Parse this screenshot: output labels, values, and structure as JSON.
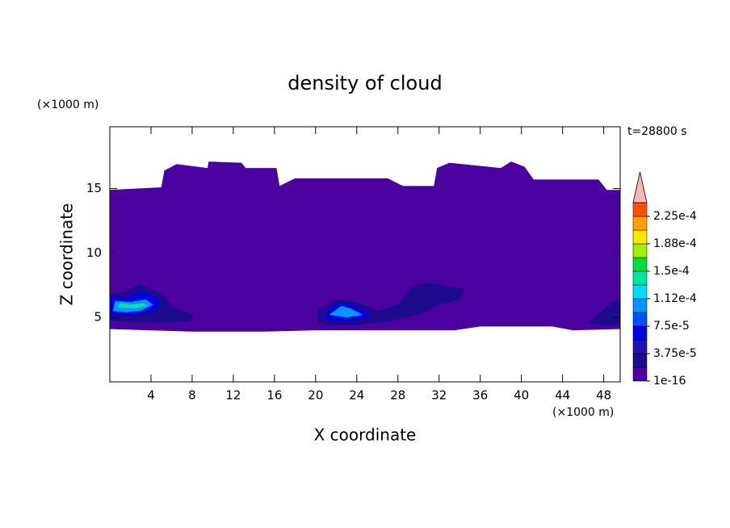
{
  "chart_data": {
    "type": "contour",
    "title": "density of cloud",
    "xlabel": "X coordinate",
    "ylabel": "Z coordinate",
    "x_unit": "(×1000 m)",
    "y_unit": "(×1000 m)",
    "annotation": "t=28800 s",
    "xlim": [
      0,
      49.6
    ],
    "ylim": [
      0,
      19.8
    ],
    "xticks": [
      4,
      8,
      12,
      16,
      20,
      24,
      28,
      32,
      36,
      40,
      44,
      48
    ],
    "yticks": [
      5,
      10,
      15
    ],
    "colorbar": {
      "levels": [
        1e-16,
        1.875e-05,
        3.75e-05,
        5.625e-05,
        7.5e-05,
        9.375e-05,
        0.0001125,
        0.00013125,
        0.00015,
        0.00016875,
        0.0001875,
        0.00020625,
        0.000225,
        0.00024375
      ],
      "colors": [
        "#4b00a0",
        "#1e0a8c",
        "#1e14b4",
        "#0000e6",
        "#0050ff",
        "#0096ff",
        "#00dcff",
        "#00e6a0",
        "#00dc3c",
        "#a0f000",
        "#ffe600",
        "#ffa000",
        "#ff5000"
      ],
      "extend_color": "#ffb4b4",
      "ticks": [
        {
          "value": 1e-16,
          "label": "1e-16"
        },
        {
          "value": 3.75e-05,
          "label": "3.75e-5"
        },
        {
          "value": 7.5e-05,
          "label": "7.5e-5"
        },
        {
          "value": 0.0001125,
          "label": "1.12e-4"
        },
        {
          "value": 0.00015,
          "label": "1.5e-4"
        },
        {
          "value": 0.0001875,
          "label": "1.88e-4"
        },
        {
          "value": 0.000225,
          "label": "2.25e-4"
        }
      ]
    },
    "contours": [
      {
        "level": 1e-16,
        "polygon": [
          [
            0,
            14.9
          ],
          [
            5,
            15.1
          ],
          [
            5.3,
            16.4
          ],
          [
            6.5,
            16.9
          ],
          [
            9.5,
            16.6
          ],
          [
            9.6,
            17.1
          ],
          [
            12.8,
            17.0
          ],
          [
            13.2,
            16.6
          ],
          [
            16.2,
            16.6
          ],
          [
            16.5,
            15.2
          ],
          [
            18,
            15.8
          ],
          [
            27,
            15.8
          ],
          [
            28.5,
            15.2
          ],
          [
            31.5,
            15.2
          ],
          [
            31.8,
            16.6
          ],
          [
            33,
            17.0
          ],
          [
            38,
            16.6
          ],
          [
            39,
            17.1
          ],
          [
            40.3,
            16.7
          ],
          [
            41.2,
            15.7
          ],
          [
            47.5,
            15.7
          ],
          [
            48.3,
            14.9
          ],
          [
            49.6,
            14.9
          ],
          [
            49.6,
            4.1
          ],
          [
            45,
            4.0
          ],
          [
            43,
            4.3
          ],
          [
            36,
            4.3
          ],
          [
            33.5,
            4.0
          ],
          [
            20,
            4.0
          ],
          [
            15,
            3.9
          ],
          [
            8,
            3.9
          ],
          [
            0,
            4.1
          ]
        ]
      },
      {
        "level": 1.875e-05,
        "polygon": [
          [
            0,
            4.8
          ],
          [
            0,
            6.8
          ],
          [
            1.5,
            7.0
          ],
          [
            3,
            7.6
          ],
          [
            4.5,
            7.0
          ],
          [
            5.5,
            6.5
          ],
          [
            6,
            5.8
          ],
          [
            8.2,
            5.2
          ],
          [
            7.8,
            4.7
          ],
          [
            5,
            4.6
          ],
          [
            2,
            4.6
          ]
        ]
      },
      {
        "level": 1.875e-05,
        "polygon": [
          [
            20.2,
            4.6
          ],
          [
            20.2,
            5.5
          ],
          [
            22,
            6.4
          ],
          [
            24,
            6.2
          ],
          [
            26,
            5.5
          ],
          [
            28,
            6.0
          ],
          [
            29.5,
            7.5
          ],
          [
            31,
            7.7
          ],
          [
            34.5,
            7.2
          ],
          [
            34,
            6.4
          ],
          [
            32,
            6.0
          ],
          [
            30,
            5.2
          ],
          [
            27,
            4.7
          ],
          [
            24,
            4.4
          ],
          [
            21,
            4.4
          ]
        ]
      },
      {
        "level": 1.875e-05,
        "polygon": [
          [
            46.5,
            4.6
          ],
          [
            47.5,
            5.3
          ],
          [
            49.6,
            6.6
          ],
          [
            49.6,
            4.4
          ],
          [
            48,
            4.4
          ]
        ]
      },
      {
        "level": 5.625e-05,
        "polygon": [
          [
            0,
            5.2
          ],
          [
            0,
            6.6
          ],
          [
            1.5,
            6.5
          ],
          [
            3,
            7.0
          ],
          [
            4.5,
            6.6
          ],
          [
            5,
            6.0
          ],
          [
            4,
            5.4
          ],
          [
            2,
            5.2
          ]
        ]
      },
      {
        "level": 5.625e-05,
        "polygon": [
          [
            20.8,
            4.9
          ],
          [
            21.5,
            5.8
          ],
          [
            22.6,
            6.2
          ],
          [
            24,
            5.8
          ],
          [
            25.5,
            5.2
          ],
          [
            24,
            4.8
          ],
          [
            22,
            4.7
          ]
        ]
      },
      {
        "level": 9.375e-05,
        "polygon": [
          [
            0.3,
            5.5
          ],
          [
            0.5,
            6.3
          ],
          [
            2,
            6.2
          ],
          [
            3.5,
            6.4
          ],
          [
            4.2,
            6.0
          ],
          [
            3,
            5.5
          ],
          [
            1.5,
            5.4
          ]
        ]
      },
      {
        "level": 0.00013125,
        "polygon": [
          [
            0.8,
            5.8
          ],
          [
            1,
            6.1
          ],
          [
            2,
            6.0
          ],
          [
            3.2,
            6.1
          ],
          [
            3.6,
            5.9
          ],
          [
            2.5,
            5.7
          ]
        ]
      },
      {
        "level": 9.375e-05,
        "polygon": [
          [
            21.3,
            5.2
          ],
          [
            22.5,
            5.9
          ],
          [
            23.4,
            5.7
          ],
          [
            24.6,
            5.2
          ],
          [
            23,
            5.0
          ]
        ]
      }
    ]
  }
}
